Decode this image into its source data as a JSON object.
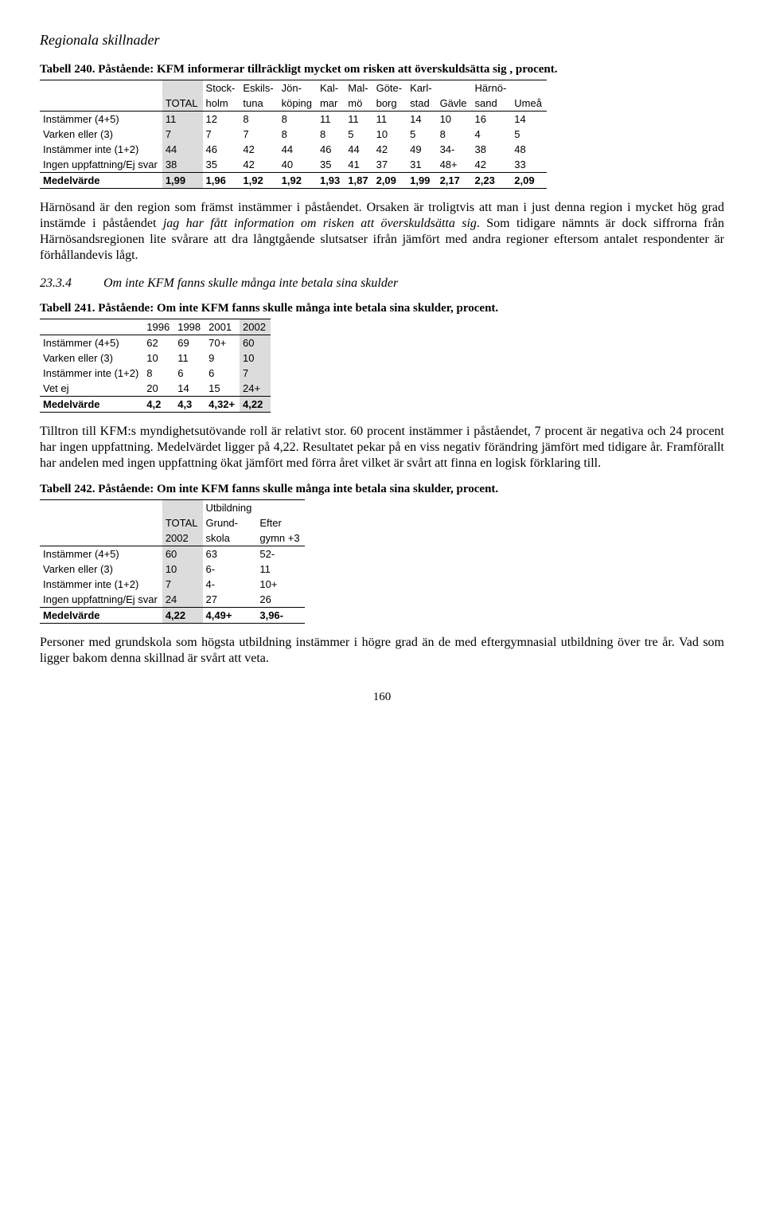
{
  "header": {
    "title": "Regionala skillnader"
  },
  "t240": {
    "caption": "Tabell 240. Påstående: KFM informerar tillräckligt mycket om risken att överskuldsätta sig , procent.",
    "head_r1": [
      "",
      "",
      "Stock-",
      "Eskils-",
      "Jön-",
      "Kal-",
      "Mal-",
      "Göte-",
      "Karl-",
      "",
      "Härnö-",
      ""
    ],
    "head_r2": [
      "",
      "TOTAL",
      "holm",
      "tuna",
      "köping",
      "mar",
      "mö",
      "borg",
      "stad",
      "Gävle",
      "sand",
      "Umeå"
    ],
    "rows": [
      {
        "label": "Instämmer (4+5)",
        "v": [
          "11",
          "12",
          "8",
          "8",
          "11",
          "11",
          "11",
          "14",
          "10",
          "16",
          "14"
        ]
      },
      {
        "label": "Varken eller (3)",
        "v": [
          "7",
          "7",
          "7",
          "8",
          "8",
          "5",
          "10",
          "5",
          "8",
          "4",
          "5"
        ]
      },
      {
        "label": "Instämmer inte (1+2)",
        "v": [
          "44",
          "46",
          "42",
          "44",
          "46",
          "44",
          "42",
          "49",
          "34-",
          "38",
          "48"
        ]
      },
      {
        "label": "Ingen uppfattning/Ej svar",
        "v": [
          "38",
          "35",
          "42",
          "40",
          "35",
          "41",
          "37",
          "31",
          "48+",
          "42",
          "33"
        ]
      }
    ],
    "foot": {
      "label": "Medelvärde",
      "v": [
        "1,99",
        "1,96",
        "1,92",
        "1,92",
        "1,93",
        "1,87",
        "2,09",
        "1,99",
        "2,17",
        "2,23",
        "2,09"
      ]
    }
  },
  "para1_a": "Härnösand är den region som främst instämmer i påståendet. Orsaken är troligtvis att man i just denna region i mycket hög grad instämde i påståendet ",
  "para1_b": "jag har fått information om risken att överskuldsätta sig",
  "para1_c": ". Som tidigare nämnts är dock siffrorna från Härnösandsregionen lite svårare att dra långtgående slutsatser ifrån jämfört med andra regioner eftersom antalet respondenter är förhållandevis lågt.",
  "sub": {
    "num": "23.3.4",
    "title": "Om inte KFM fanns skulle många inte betala sina skulder"
  },
  "t241": {
    "caption": "Tabell 241. Påstående: Om inte KFM fanns skulle många inte betala sina skulder, procent.",
    "head": [
      "",
      "1996",
      "1998",
      "2001",
      "2002"
    ],
    "rows": [
      {
        "label": "Instämmer (4+5)",
        "v": [
          "62",
          "69",
          "70+",
          "60"
        ]
      },
      {
        "label": "Varken eller (3)",
        "v": [
          "10",
          "11",
          "9",
          "10"
        ]
      },
      {
        "label": "Instämmer inte (1+2)",
        "v": [
          "8",
          "6",
          "6",
          "7"
        ]
      },
      {
        "label": "Vet ej",
        "v": [
          "20",
          "14",
          "15",
          "24+"
        ]
      }
    ],
    "foot": {
      "label": "Medelvärde",
      "v": [
        "4,2",
        "4,3",
        "4,32+",
        "4,22"
      ]
    }
  },
  "para2": "Tilltron till KFM:s myndighetsutövande roll är relativt stor. 60 procent instämmer i påståendet, 7 procent är negativa och 24 procent har ingen uppfattning. Medelvärdet ligger på 4,22. Resultatet pekar på en viss negativ förändring jämfört med tidigare år. Framförallt har andelen med ingen uppfattning ökat jämfört med förra året vilket är svårt att finna en logisk förklaring till.",
  "t242": {
    "caption": "Tabell 242. Påstående: Om inte KFM fanns skulle många inte betala sina skulder, procent.",
    "head_r1": [
      "",
      "",
      "Utbildning",
      ""
    ],
    "head_r2": [
      "",
      "TOTAL",
      "Grund-",
      "Efter"
    ],
    "head_r3": [
      "",
      "2002",
      "skola",
      "gymn +3"
    ],
    "rows": [
      {
        "label": "Instämmer (4+5)",
        "v": [
          "60",
          "63",
          "52-"
        ]
      },
      {
        "label": "Varken eller (3)",
        "v": [
          "10",
          "6-",
          "11"
        ]
      },
      {
        "label": "Instämmer inte (1+2)",
        "v": [
          "7",
          "4-",
          "10+"
        ]
      },
      {
        "label": "Ingen uppfattning/Ej svar",
        "v": [
          "24",
          "27",
          "26"
        ]
      }
    ],
    "foot": {
      "label": "Medelvärde",
      "v": [
        "4,22",
        "4,49+",
        "3,96-"
      ]
    }
  },
  "para3": "Personer med grundskola som högsta utbildning instämmer i högre grad än de med eftergymnasial utbildning över tre år. Vad som ligger bakom denna skillnad är svårt att veta.",
  "page": "160"
}
